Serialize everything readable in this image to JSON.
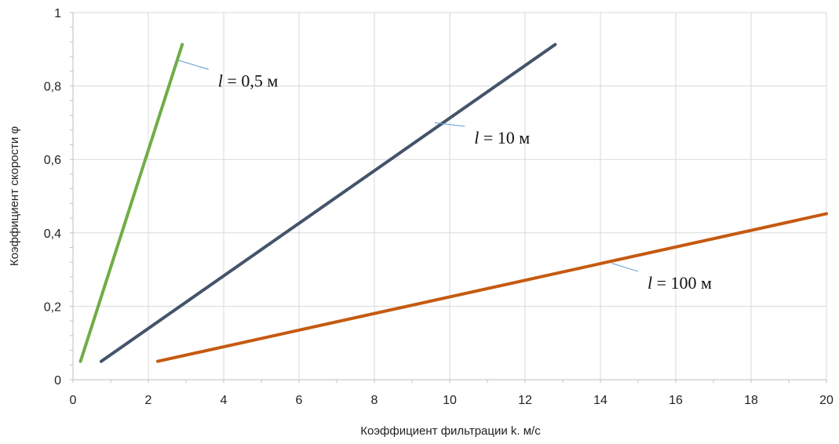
{
  "chart_data": {
    "type": "line",
    "xlabel": "Коэффициент фильтрации k. м/с",
    "ylabel": "Коэффициент скорости  φ",
    "xlim": [
      0,
      20
    ],
    "ylim": [
      0,
      1
    ],
    "x_ticks": [
      "0",
      "2",
      "4",
      "6",
      "8",
      "10",
      "12",
      "14",
      "16",
      "18",
      "20"
    ],
    "y_ticks": [
      "0",
      "0,2",
      "0,4",
      "0,6",
      "0,8",
      "1"
    ],
    "grid": true,
    "series": [
      {
        "label_var": "l",
        "label_rest": " = 0,5 м",
        "color": "#70ad47",
        "points": [
          [
            0.2,
            0.05
          ],
          [
            2.9,
            0.913
          ]
        ],
        "label_at": [
          2.8,
          0.86
        ],
        "leader_from": [
          2.8,
          0.87
        ],
        "leader_to": [
          3.6,
          0.845
        ]
      },
      {
        "label_var": "l",
        "label_rest": " = 10 м",
        "color": "#44546a",
        "points": [
          [
            0.75,
            0.05
          ],
          [
            12.8,
            0.913
          ]
        ],
        "label_at": [
          9.5,
          0.7
        ],
        "leader_from": [
          9.6,
          0.7
        ],
        "leader_to": [
          10.4,
          0.69
        ]
      },
      {
        "label_var": "l",
        "label_rest": " = 100 м",
        "color": "#c55a11",
        "points": [
          [
            2.25,
            0.05
          ],
          [
            20,
            0.452
          ]
        ],
        "label_at": [
          14.2,
          0.32
        ],
        "leader_from": [
          14.3,
          0.317
        ],
        "leader_to": [
          15,
          0.295
        ]
      }
    ]
  }
}
